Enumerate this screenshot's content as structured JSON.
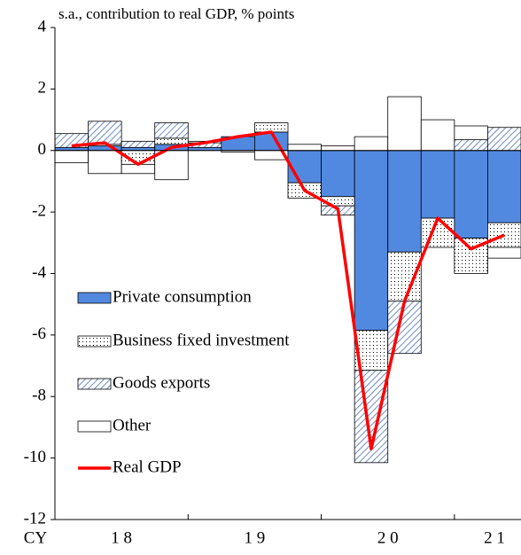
{
  "chart_data": {
    "type": "stacked_bar_line",
    "title": "s.a., contribution  to real GDP, % points",
    "categories": [
      null,
      null,
      null,
      null,
      null,
      null,
      null,
      null,
      null,
      null,
      null,
      null,
      null,
      null
    ],
    "x_axis_labels": [
      "CY",
      "1 8",
      "1 9",
      "2 0",
      "2 1"
    ],
    "series": [
      {
        "name": "Private consumption",
        "color": "#5289e0",
        "pattern": "solid",
        "values": [
          0.1,
          0.15,
          0.1,
          0.2,
          0.1,
          0.45,
          0.6,
          -1.05,
          -1.5,
          -5.85,
          -3.3,
          -2.2,
          -2.85,
          -2.35
        ]
      },
      {
        "name": "Business fixed investment",
        "color": "#000000",
        "pattern": "dots",
        "values": [
          0,
          0.05,
          -0.45,
          0.2,
          0,
          0,
          0.3,
          -0.5,
          -0.3,
          -1.3,
          -1.6,
          -0.95,
          -1.15,
          -0.8
        ]
      },
      {
        "name": "Goods exports",
        "color": "#4a6fb0",
        "pattern": "hatch",
        "values": [
          0.45,
          0.75,
          0.2,
          0.5,
          0.15,
          0,
          0,
          0,
          -0.3,
          -3.0,
          -1.7,
          0,
          0.35,
          0.75
        ]
      },
      {
        "name": "Other",
        "color": "#ffffff",
        "pattern": "solid",
        "values": [
          -0.4,
          -0.75,
          -0.3,
          -0.95,
          0.05,
          -0.05,
          -0.3,
          0.2,
          0.15,
          0.45,
          1.75,
          1.0,
          0.45,
          -0.35
        ]
      }
    ],
    "line": {
      "name": "Real GDP",
      "color": "#ff0000",
      "values": [
        0.15,
        0.25,
        -0.45,
        0.1,
        0.25,
        0.45,
        0.6,
        -1.3,
        -1.9,
        -9.7,
        -4.9,
        -2.2,
        -3.2,
        -2.75
      ]
    },
    "ylim": [
      -12,
      4
    ],
    "yticks": [
      -12,
      -10,
      -8,
      -6,
      -4,
      -2,
      0,
      2,
      4
    ]
  }
}
